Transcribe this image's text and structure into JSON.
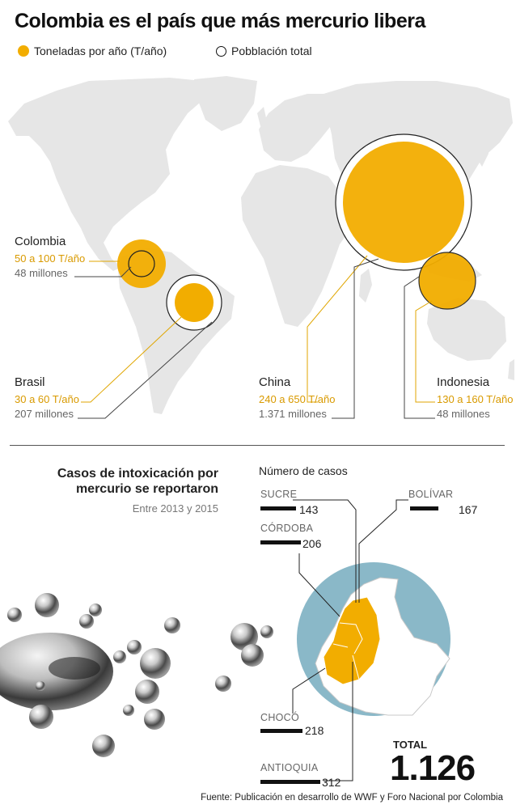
{
  "title": "Colombia es el país que más mercurio libera",
  "legend": {
    "filled_label": "Toneladas por año (T/año)",
    "outline_label": "Pobblación total",
    "filled_color": "#f2ad00",
    "outline_color": "#111111"
  },
  "countries": [
    {
      "name": "Colombia",
      "tons": "50 a 100 T/año",
      "population": "48 millones"
    },
    {
      "name": "Brasil",
      "tons": "30 a 60 T/año",
      "population": "207 millones"
    },
    {
      "name": "China",
      "tons": "240 a 650 T/año",
      "population": "1.371 millones"
    },
    {
      "name": "Indonesia",
      "tons": "130 a 160 T/año",
      "population": "48 millones"
    }
  ],
  "cases": {
    "title": "Casos de intoxicación por mercurio se reportaron",
    "period": "Entre 2013 y 2015",
    "subtitle": "Número de casos",
    "departments": [
      {
        "name": "SUCRE",
        "value": 143
      },
      {
        "name": "BOLÍVAR",
        "value": 167
      },
      {
        "name": "CÓRDOBA",
        "value": 206
      },
      {
        "name": "CHOCÓ",
        "value": 218
      },
      {
        "name": "ANTIOQUIA",
        "value": 312
      }
    ],
    "total_label": "TOTAL",
    "total_value": "1.126"
  },
  "source": "Fuente: Publicación en desarrollo de WWF y Foro Nacional por Colombia",
  "colors": {
    "accent": "#f2ad00",
    "land": "#e6e6e6",
    "sea": "#8ab8c8",
    "text": "#222222"
  }
}
